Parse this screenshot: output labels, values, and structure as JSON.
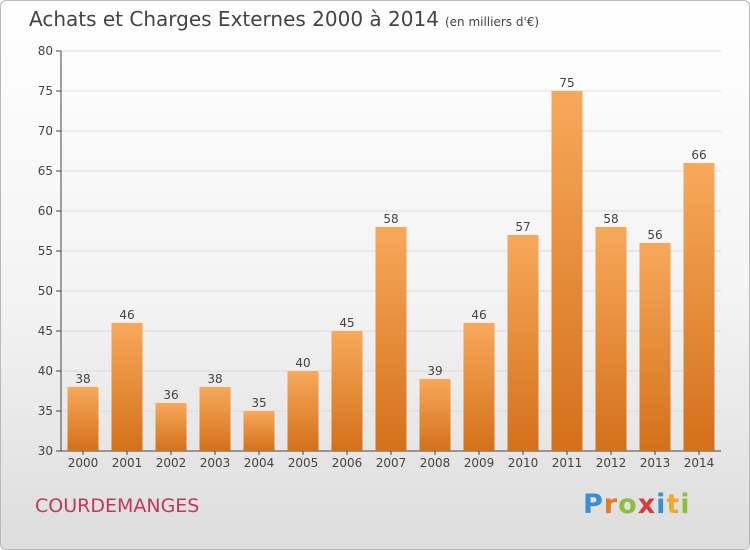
{
  "header": {
    "title": "Achats et Charges Externes 2000 à 2014",
    "subtitle": "(en milliers d'€)"
  },
  "footer": {
    "commune": "COURDEMANGES",
    "brand": {
      "letters": [
        "P",
        "r",
        "o",
        "x",
        "i",
        "t",
        "i"
      ]
    }
  },
  "colors": {
    "bar_top": "#f7a95a",
    "bar_bottom": "#d4701a",
    "commune": "#c0385c",
    "grid": "#dcdcdc"
  },
  "chart_data": {
    "type": "bar",
    "title": "Achats et Charges Externes 2000 à 2014",
    "subtitle": "(en milliers d'€)",
    "categories": [
      "2000",
      "2001",
      "2002",
      "2003",
      "2004",
      "2005",
      "2006",
      "2007",
      "2008",
      "2009",
      "2010",
      "2011",
      "2012",
      "2013",
      "2014"
    ],
    "values": [
      38,
      46,
      36,
      38,
      35,
      40,
      45,
      58,
      39,
      46,
      57,
      75,
      58,
      56,
      66
    ],
    "ylim": [
      30,
      80
    ],
    "yticks": [
      30,
      35,
      40,
      45,
      50,
      55,
      60,
      65,
      70,
      75,
      80
    ],
    "grid": true,
    "data_labels": true
  }
}
